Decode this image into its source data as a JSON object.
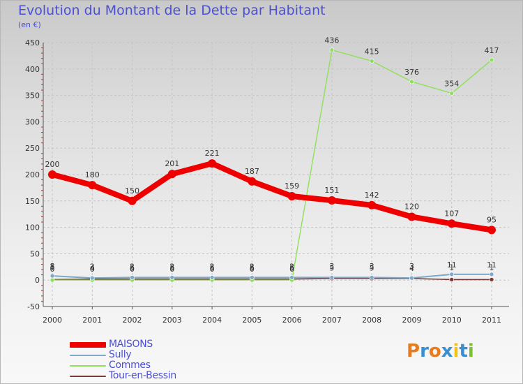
{
  "title": "Evolution du Montant de la Dette par Habitant",
  "subtitle": "(en €)",
  "logo": {
    "text": "Proxiti",
    "colors": [
      "#e87b1e",
      "#3b8fd1",
      "#e87b1e",
      "#3b8fd1",
      "#f2c21a",
      "#3b8fd1",
      "#7cbf2f"
    ]
  },
  "chart_data": {
    "type": "line",
    "categories": [
      "2000",
      "2001",
      "2002",
      "2003",
      "2004",
      "2005",
      "2006",
      "2007",
      "2008",
      "2009",
      "2010",
      "2011"
    ],
    "ylim": [
      -50,
      450
    ],
    "yticks": [
      "-50",
      "0",
      "50",
      "100",
      "150",
      "200",
      "250",
      "300",
      "350",
      "400",
      "450"
    ],
    "series": [
      {
        "name": "MAISONS",
        "color": "#ee0000",
        "values": [
          200,
          180,
          150,
          201,
          221,
          187,
          159,
          151,
          142,
          120,
          107,
          95
        ],
        "labels": [
          "200",
          "180",
          "150",
          "201",
          "221",
          "187",
          "159",
          "151",
          "142",
          "120",
          "107",
          "95"
        ]
      },
      {
        "name": "Sully",
        "color": "#7fa8c9",
        "values": [
          8,
          4,
          5,
          5,
          5,
          5,
          5,
          5,
          5,
          4,
          11,
          11
        ],
        "labels": [
          "8",
          "4",
          "5",
          "5",
          "5",
          "5",
          "5",
          "5",
          "5",
          "4",
          "11",
          "11"
        ]
      },
      {
        "name": "Commes",
        "color": "#8ee05a",
        "values": [
          0,
          0,
          0,
          0,
          0,
          0,
          0,
          436,
          415,
          376,
          354,
          417
        ],
        "labels": [
          "0",
          "0",
          "0",
          "0",
          "0",
          "0",
          "0",
          "436",
          "415",
          "376",
          "354",
          "417"
        ]
      },
      {
        "name": "Tour-en-Bessin",
        "color": "#7a3a3a",
        "values": [
          1,
          2,
          2,
          2,
          2,
          2,
          2,
          3,
          3,
          3,
          1,
          1
        ],
        "labels": [
          "1",
          "2",
          "2",
          "2",
          "2",
          "2",
          "2",
          "3",
          "3",
          "3",
          "1",
          "1"
        ]
      }
    ]
  }
}
